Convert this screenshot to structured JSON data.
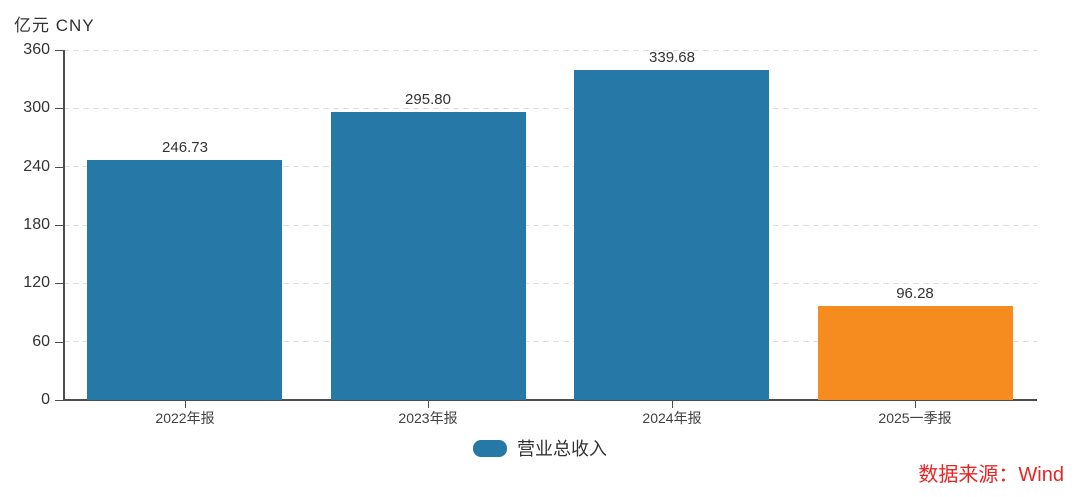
{
  "chart_data": {
    "type": "bar",
    "unit_label": "亿元 CNY",
    "categories": [
      "2022年报",
      "2023年报",
      "2024年报",
      "2025一季报"
    ],
    "values": [
      246.73,
      295.8,
      339.68,
      96.28
    ],
    "value_labels": [
      "246.73",
      "295.80",
      "339.68",
      "96.28"
    ],
    "bar_colors": [
      "#2679a6",
      "#2679a6",
      "#2679a6",
      "#f68b1f"
    ],
    "series": [
      {
        "name": "营业总收入",
        "values": [
          246.73,
          295.8,
          339.68,
          96.28
        ]
      }
    ],
    "legend": [
      {
        "label": "营业总收入",
        "color": "#2679a6"
      }
    ],
    "legend_position": "bottom-center",
    "ylim": [
      0,
      360
    ],
    "yticks": [
      "0",
      "60",
      "120",
      "180",
      "240",
      "300",
      "360"
    ],
    "grid": "horizontal-dashed",
    "accent_colors": {
      "bar_teal": "#2679a6",
      "bar_orange": "#f68b1f"
    }
  },
  "footer": {
    "source_label": "数据来源：Wind",
    "source_color": "#e62525"
  }
}
